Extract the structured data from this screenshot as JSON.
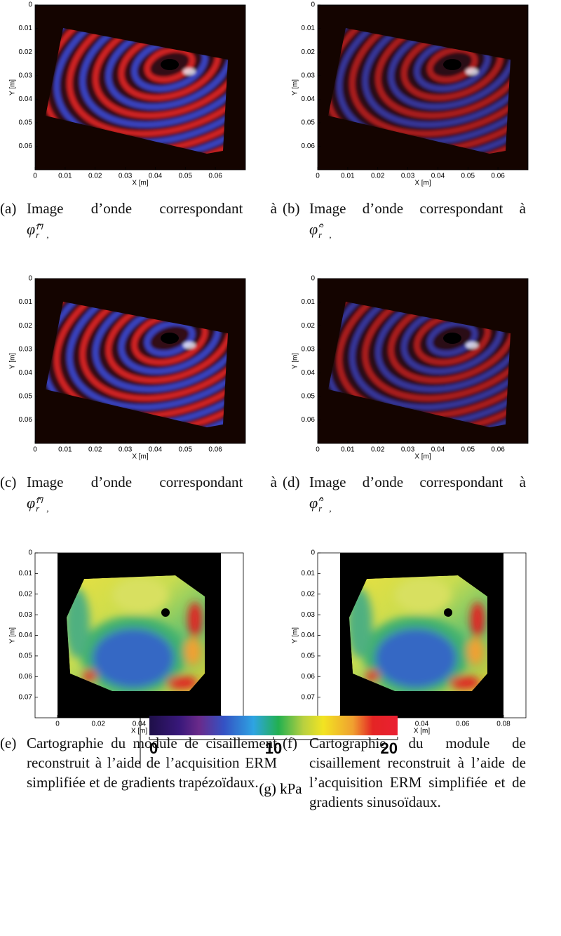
{
  "wave_images": {
    "axes": {
      "xlabel": "X [m]",
      "ylabel": "Y [m]",
      "xlim": [
        0,
        0.07
      ],
      "ylim": [
        0,
        0.07
      ],
      "xticks": [
        0,
        0.01,
        0.02,
        0.03,
        0.04,
        0.05,
        0.06
      ],
      "yticks": [
        0,
        0.01,
        0.02,
        0.03,
        0.04,
        0.05,
        0.06
      ]
    },
    "panels": [
      {
        "label": "(a)",
        "caption": "Image d’onde correspondant à",
        "math": {
          "base": "φ̂",
          "sup": "⊓",
          "sub": "r⃗,ℜ"
        }
      },
      {
        "label": "(b)",
        "caption": "Image d’onde correspondant à",
        "math": {
          "base": "φ̂",
          "sup": "~",
          "sub": "r⃗,ℜ"
        }
      },
      {
        "label": "(c)",
        "caption": "Image d’onde correspondant à",
        "math": {
          "base": "φ̂",
          "sup": "⊓",
          "sub": "r⃗,ℑ"
        }
      },
      {
        "label": "(d)",
        "caption": "Image d’onde correspondant à",
        "math": {
          "base": "φ̂",
          "sup": "~",
          "sub": "r⃗,ℑ"
        }
      }
    ]
  },
  "maps": {
    "axes": {
      "xlabel": "X [m]",
      "ylabel": "Y [m]",
      "xlim": [
        -0.011,
        0.091
      ],
      "ylim": [
        0,
        0.08
      ],
      "xticks": [
        0,
        0.02,
        0.04,
        0.06,
        0.08
      ],
      "yticks": [
        0,
        0.01,
        0.02,
        0.03,
        0.04,
        0.05,
        0.06,
        0.07
      ]
    },
    "panels": [
      {
        "label": "(e)",
        "caption": "Cartographie du module de cisaillement reconstruit à l’aide de l’acquisition ERM simplifiée et de gradients trapézoïdaux."
      },
      {
        "label": "(f)",
        "caption": "Cartographie du module de cisaillement reconstruit à l’aide de l’acquisition ERM simplifiée et de gradients sinusoïdaux."
      }
    ]
  },
  "colorbar": {
    "label": "(g)",
    "unit": "kPa",
    "lim": [
      0,
      20
    ],
    "ticks": [
      0,
      10,
      20
    ]
  }
}
